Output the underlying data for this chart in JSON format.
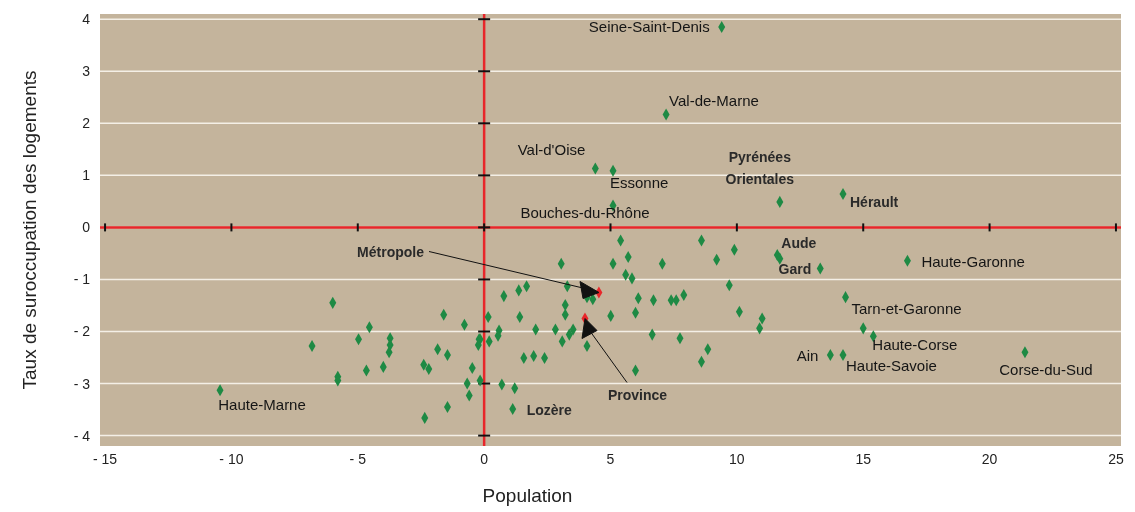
{
  "chart_data": {
    "type": "scatter",
    "xlabel": "Population",
    "ylabel": "Taux de suroccupation des logements",
    "xlim": [
      -15.2,
      25.2
    ],
    "ylim": [
      -4.2,
      4.1
    ],
    "xticks": [
      {
        "value": -15,
        "label": "- 15"
      },
      {
        "value": -10,
        "label": "- 10"
      },
      {
        "value": -5,
        "label": "- 5"
      },
      0,
      5,
      10,
      15,
      20,
      25
    ],
    "yticks": [
      {
        "value": -4,
        "label": "- 4"
      },
      {
        "value": -3,
        "label": "- 3"
      },
      {
        "value": -2,
        "label": "- 2"
      },
      {
        "value": -1,
        "label": "- 1"
      },
      0,
      1,
      2,
      3,
      4
    ],
    "grid": "y",
    "marker": "diamond",
    "ref_lines": [
      {
        "axis": "x",
        "value": 0,
        "color": "#e8262a"
      }
    ],
    "x": [
      9.4,
      7.2,
      4.4,
      5.1,
      5.1,
      11.7,
      14.2,
      11.6,
      11.7,
      13.3,
      16.75,
      14.3,
      15.0,
      15.4,
      13.7,
      14.2,
      21.4,
      -10.45,
      1.13,
      4.54,
      3.99,
      8.6,
      9.9,
      9.2,
      9.7,
      7.9,
      10.1,
      11.0,
      10.9,
      7.75,
      8.85,
      8.6,
      5.4,
      5.7,
      3.05,
      5.1,
      7.05,
      5.6,
      5.85,
      1.68,
      1.37,
      3.29,
      0.78,
      4.07,
      4.3,
      6.1,
      6.7,
      7.4,
      7.6,
      3.21,
      0.16,
      1.41,
      3.21,
      5.01,
      5.99,
      2.04,
      2.82,
      3.52,
      3.37,
      0.59,
      0.55,
      6.65,
      0.2,
      -0.16,
      3.09,
      4.07,
      1.57,
      1.96,
      2.39,
      5.99,
      -0.16,
      0.7,
      1.21,
      -5.99,
      -1.6,
      -0.78,
      -4.54,
      -4.97,
      -3.72,
      -6.81,
      -3.72,
      -3.76,
      -1.84,
      -1.45,
      -0.2,
      -0.23,
      -0.47,
      -2.39,
      -2.19,
      -3.99,
      -4.66,
      -5.79,
      -5.79,
      -0.67,
      -0.59,
      -1.45,
      -2.35
    ],
    "values": [
      3.85,
      2.17,
      1.13,
      1.09,
      0.42,
      0.49,
      0.64,
      -0.53,
      -0.6,
      -0.79,
      -0.64,
      -1.34,
      -1.94,
      -2.09,
      -2.45,
      -2.45,
      -2.4,
      -3.13,
      -3.49,
      -1.25,
      -1.75,
      -0.25,
      -0.43,
      -0.62,
      -1.11,
      -1.3,
      -1.62,
      -1.75,
      -1.94,
      -2.13,
      -2.34,
      -2.58,
      -0.25,
      -0.57,
      -0.7,
      -0.7,
      -0.7,
      -0.91,
      -0.98,
      -1.13,
      -1.21,
      -1.13,
      -1.32,
      -1.34,
      -1.38,
      -1.36,
      -1.4,
      -1.4,
      -1.4,
      -1.49,
      -1.72,
      -1.72,
      -1.68,
      -1.7,
      -1.64,
      -1.96,
      -1.96,
      -1.96,
      -2.06,
      -1.98,
      -2.08,
      -2.06,
      -2.19,
      -2.15,
      -2.19,
      -2.28,
      -2.51,
      -2.47,
      -2.51,
      -2.75,
      -2.94,
      -3.02,
      -3.09,
      -1.45,
      -1.68,
      -1.87,
      -1.92,
      -2.15,
      -2.13,
      -2.28,
      -2.26,
      -2.4,
      -2.34,
      -2.45,
      -2.15,
      -2.26,
      -2.7,
      -2.64,
      -2.72,
      -2.68,
      -2.75,
      -2.87,
      -2.94,
      -3.0,
      -3.23,
      -3.45,
      -3.66
    ],
    "colors": [
      "#1e8a44",
      "#1e8a44",
      "#1e8a44",
      "#1e8a44",
      "#1e8a44",
      "#1e8a44",
      "#1e8a44",
      "#1e8a44",
      "#1e8a44",
      "#1e8a44",
      "#1e8a44",
      "#1e8a44",
      "#1e8a44",
      "#1e8a44",
      "#1e8a44",
      "#1e8a44",
      "#1e8a44",
      "#1e8a44",
      "#1e8a44",
      "#e8262a",
      "#e8262a",
      "#1e8a44",
      "#1e8a44",
      "#1e8a44",
      "#1e8a44",
      "#1e8a44",
      "#1e8a44",
      "#1e8a44",
      "#1e8a44",
      "#1e8a44",
      "#1e8a44",
      "#1e8a44",
      "#1e8a44",
      "#1e8a44",
      "#1e8a44",
      "#1e8a44",
      "#1e8a44",
      "#1e8a44",
      "#1e8a44",
      "#1e8a44",
      "#1e8a44",
      "#1e8a44",
      "#1e8a44",
      "#1e8a44",
      "#1e8a44",
      "#1e8a44",
      "#1e8a44",
      "#1e8a44",
      "#1e8a44",
      "#1e8a44",
      "#1e8a44",
      "#1e8a44",
      "#1e8a44",
      "#1e8a44",
      "#1e8a44",
      "#1e8a44",
      "#1e8a44",
      "#1e8a44",
      "#1e8a44",
      "#1e8a44",
      "#1e8a44",
      "#1e8a44",
      "#1e8a44",
      "#1e8a44",
      "#1e8a44",
      "#1e8a44",
      "#1e8a44",
      "#1e8a44",
      "#1e8a44",
      "#1e8a44",
      "#1e8a44",
      "#1e8a44",
      "#1e8a44",
      "#1e8a44",
      "#1e8a44",
      "#1e8a44",
      "#1e8a44",
      "#1e8a44",
      "#1e8a44",
      "#1e8a44",
      "#1e8a44",
      "#1e8a44",
      "#1e8a44",
      "#1e8a44",
      "#1e8a44",
      "#1e8a44",
      "#1e8a44",
      "#1e8a44",
      "#1e8a44",
      "#1e8a44",
      "#1e8a44",
      "#1e8a44",
      "#1e8a44",
      "#1e8a44",
      "#1e8a44",
      "#1e8a44",
      "#1e8a44"
    ],
    "annotations": [
      {
        "text": "Seine-Saint-Denis",
        "x": 9.4,
        "y": 3.85
      },
      {
        "text": "Val-de-Marne",
        "x": 7.2,
        "y": 2.17
      },
      {
        "text": "Val-d'Oise",
        "x": 4.4,
        "y": 1.13
      },
      {
        "text": "Essonne",
        "x": 5.1,
        "y": 1.09
      },
      {
        "text": "Bouches-du-Rhône",
        "x": 5.1,
        "y": 0.42
      },
      {
        "text": "Pyrénées Orientales",
        "x": 11.7,
        "y": 0.49
      },
      {
        "text": "Hérault",
        "x": 14.2,
        "y": 0.64
      },
      {
        "text": "Aude",
        "x": 11.6,
        "y": -0.53
      },
      {
        "text": "Gard",
        "x": 13.3,
        "y": -0.79
      },
      {
        "text": "Haute-Garonne",
        "x": 16.75,
        "y": -0.64
      },
      {
        "text": "Tarn-et-Garonne",
        "x": 14.3,
        "y": -1.34
      },
      {
        "text": "Haute-Corse",
        "x": 15.4,
        "y": -2.09
      },
      {
        "text": "Ain",
        "x": 13.7,
        "y": -2.45
      },
      {
        "text": "Haute-Savoie",
        "x": 14.2,
        "y": -2.45
      },
      {
        "text": "Corse-du-Sud",
        "x": 21.4,
        "y": -2.4
      },
      {
        "text": "Haute-Marne",
        "x": -10.45,
        "y": -3.13
      },
      {
        "text": "Lozère",
        "x": 1.13,
        "y": -3.49
      },
      "Métropole",
      "Province"
    ]
  }
}
